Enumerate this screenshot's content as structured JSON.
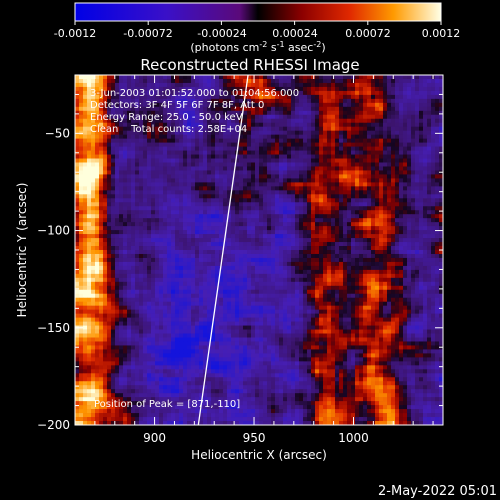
{
  "colorbar": {
    "ticks": [
      "-0.0012",
      "-0.00072",
      "-0.00024",
      "0.00024",
      "0.00072",
      "0.0012"
    ],
    "tick_values": [
      -0.0012,
      -0.00072,
      -0.00024,
      0.00024,
      0.00072,
      0.0012
    ],
    "units_main": "(photons cm",
    "units_exp1": "-2",
    "units_mid": " s",
    "units_exp2": "-1",
    "units_end": " asec",
    "units_exp3": "-2",
    "units_close": ")"
  },
  "chart_data": {
    "type": "heatmap",
    "title": "Reconstructed RHESSI Image",
    "xlabel": "Heliocentric X (arcsec)",
    "ylabel": "Heliocentric Y (arcsec)",
    "xlim": [
      860,
      1045
    ],
    "ylim": [
      -200,
      -20
    ],
    "x_ticks": [
      900,
      950,
      1000
    ],
    "y_ticks": [
      -50,
      -100,
      -150,
      -200
    ],
    "x_tick_labels": [
      "900",
      "950",
      "1000"
    ],
    "y_tick_labels": [
      "−50",
      "−100",
      "−150",
      "−200"
    ],
    "colorbar_range": [
      -0.0012,
      0.0012
    ],
    "info_lines": [
      "3-Jun-2003 01:01:52.000 to 01:04:56.000",
      "Detectors: 3F 4F 5F 6F 7F 8F, Att 0",
      "Energy Range: 25.0 - 50.0 keV",
      "Clean    Total counts: 2.58E+04"
    ],
    "peak_label": "Position of Peak = [871,-110]",
    "peak": [
      871,
      -110
    ],
    "limb_line": [
      [
        922,
        -200
      ],
      [
        947,
        -20
      ]
    ]
  },
  "footer": {
    "timestamp": "2-May-2022 05:01"
  }
}
